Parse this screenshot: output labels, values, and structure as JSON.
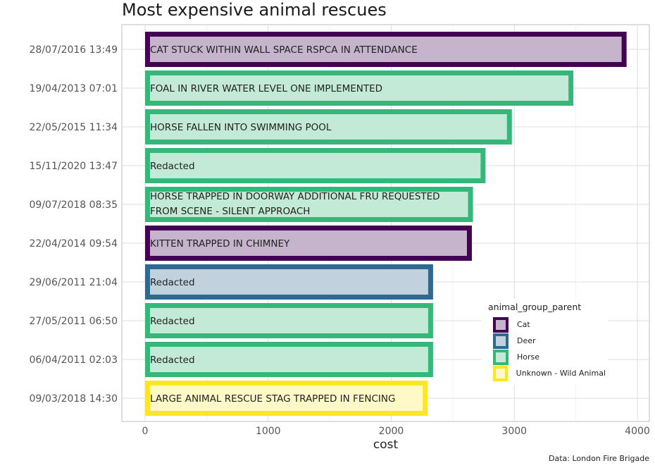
{
  "chart_data": {
    "type": "bar",
    "orientation": "horizontal",
    "title": "Most expensive animal rescues",
    "xlabel": "cost",
    "ylabel": "",
    "xlim": [
      0,
      4000
    ],
    "x_ticks": [
      0,
      1000,
      2000,
      3000,
      4000
    ],
    "grid": true,
    "legend_title": "animal_group_parent",
    "legend_position": "bottom-right, inside plot",
    "caption": "Data: London Fire Brigade",
    "series": [
      {
        "name": "Cat",
        "color": "#440154",
        "fill": "#c6b3cc"
      },
      {
        "name": "Deer",
        "color": "#31688e",
        "fill": "#c1d1dd"
      },
      {
        "name": "Horse",
        "color": "#35b779",
        "fill": "#c3ead7"
      },
      {
        "name": "Unknown - Wild Animal",
        "color": "#fde725",
        "fill": "#fef9c6"
      }
    ],
    "bars": [
      {
        "category": "28/07/2016 13:49",
        "value": 3912,
        "group": "Cat",
        "label": [
          "CAT STUCK WITHIN WALL SPACE RSPCA IN ATTENDANCE"
        ]
      },
      {
        "category": "19/04/2013 07:01",
        "value": 3480,
        "group": "Horse",
        "label": [
          "FOAL IN RIVER WATER LEVEL ONE IMPLEMENTED"
        ]
      },
      {
        "category": "22/05/2015 11:34",
        "value": 2980,
        "group": "Horse",
        "label": [
          "HORSE FALLEN INTO SWIMMING POOL"
        ]
      },
      {
        "category": "15/11/2020 13:47",
        "value": 2766,
        "group": "Horse",
        "label": [
          "Redacted"
        ]
      },
      {
        "category": "09/07/2018 08:35",
        "value": 2664,
        "group": "Horse",
        "label": [
          "HORSE TRAPPED IN DOORWAY ADDITIONAL FRU REQUESTED",
          "FROM SCENE - SILENT APPROACH"
        ]
      },
      {
        "category": "22/04/2014 09:54",
        "value": 2655,
        "group": "Cat",
        "label": [
          "KITTEN TRAPPED IN CHIMNEY"
        ]
      },
      {
        "category": "29/06/2011 21:04",
        "value": 2340,
        "group": "Deer",
        "label": [
          "Redacted"
        ]
      },
      {
        "category": "27/05/2011 06:50",
        "value": 2340,
        "group": "Horse",
        "label": [
          "Redacted"
        ]
      },
      {
        "category": "06/04/2011 02:03",
        "value": 2340,
        "group": "Horse",
        "label": [
          "Redacted"
        ]
      },
      {
        "category": "09/03/2018 14:30",
        "value": 2296,
        "group": "Unknown - Wild Animal",
        "label": [
          "LARGE ANIMAL RESCUE STAG TRAPPED IN FENCING"
        ]
      }
    ]
  }
}
